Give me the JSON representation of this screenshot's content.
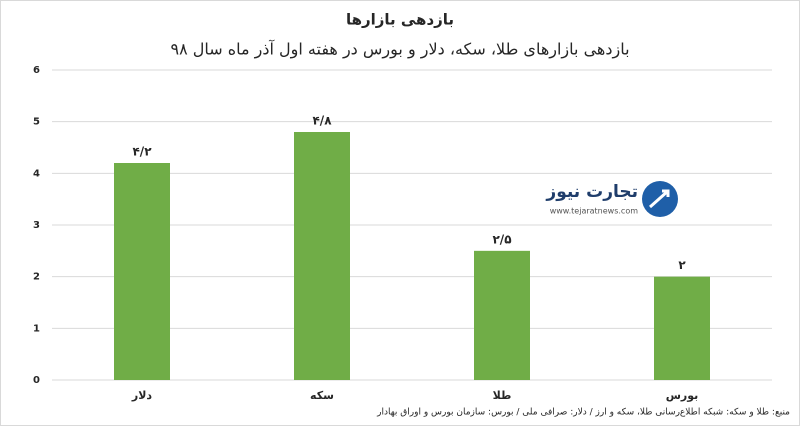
{
  "chart_data": {
    "type": "bar",
    "title": "بازدهی بازارها",
    "subtitle": "بازدهی بازارهای طلا، سکه، دلار و بورس در هفته اول آذر ماه سال ۹۸",
    "categories": [
      "دلار",
      "سکه",
      "طلا",
      "بورس"
    ],
    "values": [
      4.2,
      4.8,
      2.5,
      2
    ],
    "value_labels": [
      "۴/۲",
      "۴/۸",
      "۲/۵",
      "۲"
    ],
    "color": "#70ad47",
    "ylim": [
      0,
      6
    ],
    "yticks": [
      0,
      1,
      2,
      3,
      4,
      5,
      6
    ],
    "grid": true,
    "source": "منبع: طلا و سکه: شبکه اطلاع‌رسانی طلا، سکه و ارز / دلار: صرافی ملی / بورس: سازمان بورس و اوراق بهادار",
    "logo_name": "تجارت نیوز",
    "logo_url": "www.tejaratnews.com"
  }
}
